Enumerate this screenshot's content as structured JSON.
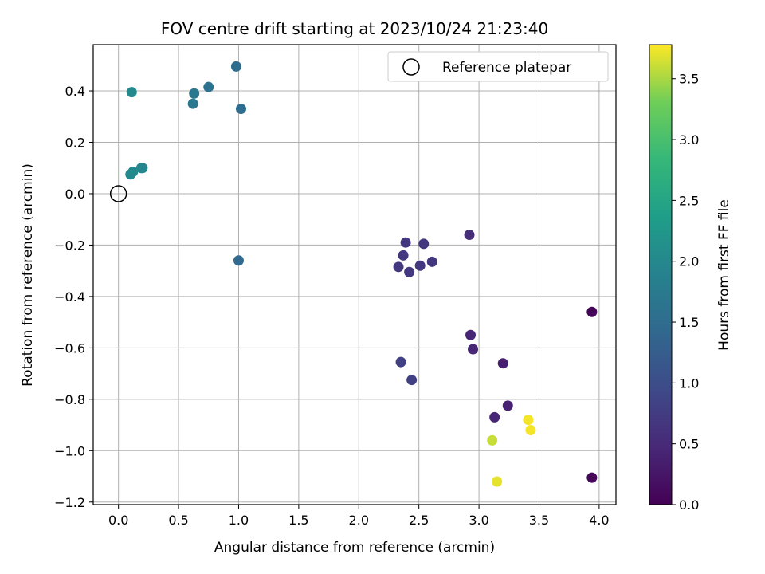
{
  "chart_data": {
    "type": "scatter",
    "title": "FOV centre drift starting at 2023/10/24 21:23:40",
    "xlabel": "Angular distance from reference (arcmin)",
    "ylabel": "Rotation from reference (arcmin)",
    "xlim": [
      -0.21,
      4.14
    ],
    "ylim": [
      -1.21,
      0.58
    ],
    "x_ticks": [
      0.0,
      0.5,
      1.0,
      1.5,
      2.0,
      2.5,
      3.0,
      3.5,
      4.0
    ],
    "x_tick_labels": [
      "0.0",
      "0.5",
      "1.0",
      "1.5",
      "2.0",
      "2.5",
      "3.0",
      "3.5",
      "4.0"
    ],
    "y_ticks": [
      0.4,
      0.2,
      0.0,
      -0.2,
      -0.4,
      -0.6,
      -0.8,
      -1.0,
      -1.2
    ],
    "y_tick_labels": [
      "0.4",
      "0.2",
      "0.0",
      "−0.2",
      "−0.4",
      "−0.6",
      "−0.8",
      "−1.0",
      "−1.2"
    ],
    "grid": true,
    "colormap": "viridis",
    "colorbar": {
      "label": "Hours from first FF file",
      "range": [
        0.0,
        3.78
      ],
      "ticks": [
        0.0,
        0.5,
        1.0,
        1.5,
        2.0,
        2.5,
        3.0,
        3.5
      ],
      "tick_labels": [
        "0.0",
        "0.5",
        "1.0",
        "1.5",
        "2.0",
        "2.5",
        "3.0",
        "3.5"
      ]
    },
    "legend": {
      "placement": "top-right",
      "entries": [
        {
          "label": "Reference platepar",
          "marker": "open-circle"
        }
      ]
    },
    "reference_point": {
      "x": 0.0,
      "y": 0.0
    },
    "points": [
      {
        "x": 3.94,
        "y": -0.46,
        "c": 0.05
      },
      {
        "x": 3.94,
        "y": -1.105,
        "c": 0.08
      },
      {
        "x": 2.92,
        "y": -0.16,
        "c": 0.55
      },
      {
        "x": 2.93,
        "y": -0.55,
        "c": 0.45
      },
      {
        "x": 2.95,
        "y": -0.605,
        "c": 0.45
      },
      {
        "x": 3.2,
        "y": -0.66,
        "c": 0.35
      },
      {
        "x": 3.24,
        "y": -0.825,
        "c": 0.4
      },
      {
        "x": 3.13,
        "y": -0.87,
        "c": 0.45
      },
      {
        "x": 2.39,
        "y": -0.19,
        "c": 0.7
      },
      {
        "x": 2.54,
        "y": -0.195,
        "c": 0.7
      },
      {
        "x": 2.37,
        "y": -0.24,
        "c": 0.7
      },
      {
        "x": 2.33,
        "y": -0.285,
        "c": 0.7
      },
      {
        "x": 2.42,
        "y": -0.305,
        "c": 0.7
      },
      {
        "x": 2.51,
        "y": -0.28,
        "c": 0.7
      },
      {
        "x": 2.61,
        "y": -0.265,
        "c": 0.7
      },
      {
        "x": 2.35,
        "y": -0.655,
        "c": 0.8
      },
      {
        "x": 2.44,
        "y": -0.725,
        "c": 0.8
      },
      {
        "x": 3.41,
        "y": -0.88,
        "c": 3.75
      },
      {
        "x": 3.43,
        "y": -0.92,
        "c": 3.75
      },
      {
        "x": 3.11,
        "y": -0.96,
        "c": 3.6
      },
      {
        "x": 3.15,
        "y": -1.12,
        "c": 3.7
      },
      {
        "x": 0.11,
        "y": 0.395,
        "c": 2.0
      },
      {
        "x": 0.98,
        "y": 0.495,
        "c": 1.5
      },
      {
        "x": 0.75,
        "y": 0.415,
        "c": 1.6
      },
      {
        "x": 0.63,
        "y": 0.39,
        "c": 1.7
      },
      {
        "x": 0.62,
        "y": 0.35,
        "c": 1.7
      },
      {
        "x": 1.02,
        "y": 0.33,
        "c": 1.5
      },
      {
        "x": 1.0,
        "y": -0.26,
        "c": 1.45
      },
      {
        "x": 0.2,
        "y": 0.1,
        "c": 1.95
      },
      {
        "x": 0.19,
        "y": 0.1,
        "c": 1.95
      },
      {
        "x": 0.12,
        "y": 0.085,
        "c": 2.0
      },
      {
        "x": 0.1,
        "y": 0.075,
        "c": 2.0
      }
    ]
  }
}
